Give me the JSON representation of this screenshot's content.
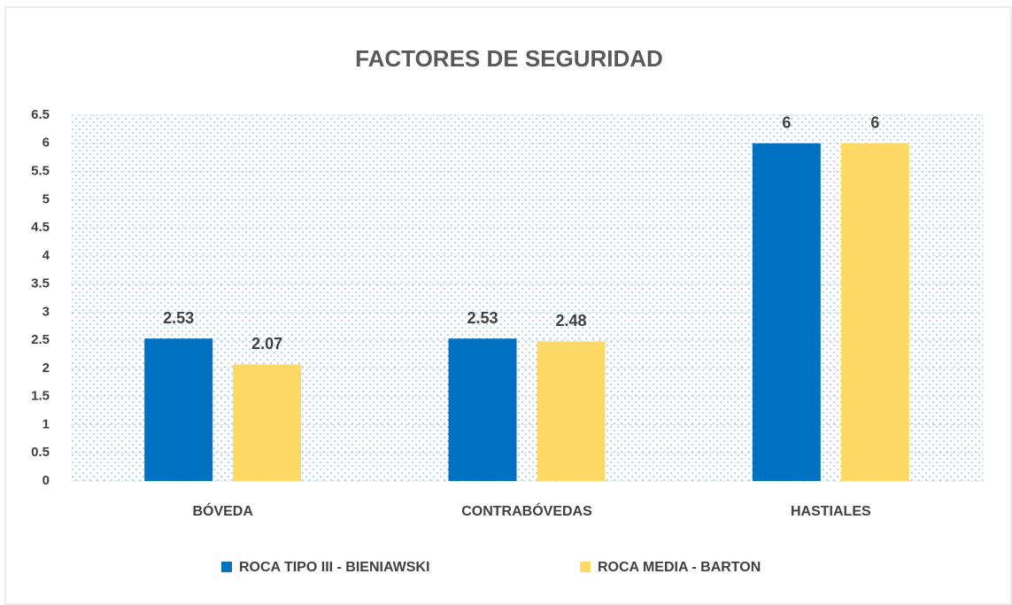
{
  "chart_data": {
    "type": "bar",
    "title": "FACTORES DE SEGURIDAD",
    "categories": [
      "BÓVEDA",
      "CONTRABÓVEDAS",
      "HASTIALES"
    ],
    "series": [
      {
        "name": "ROCA TIPO III - BIENIAWSKI",
        "color": "#0070c0",
        "values": [
          2.53,
          2.53,
          6
        ]
      },
      {
        "name": "ROCA MEDIA - BARTON",
        "color": "#ffd966",
        "values": [
          2.07,
          2.48,
          6
        ]
      }
    ],
    "ylim": [
      0,
      6.5
    ],
    "yticks": [
      0,
      0.5,
      1,
      1.5,
      2,
      2.5,
      3,
      3.5,
      4,
      4.5,
      5,
      5.5,
      6,
      6.5
    ],
    "grid": true,
    "legend": "bottom"
  }
}
